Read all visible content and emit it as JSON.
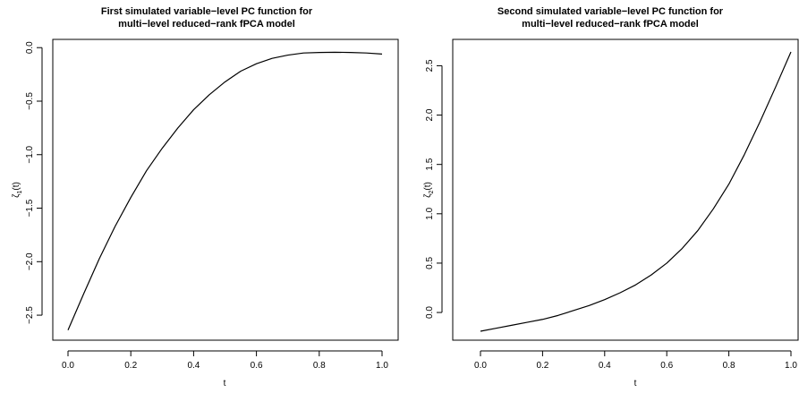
{
  "chart_data": [
    {
      "type": "line",
      "title_lines": [
        "First simulated variable−level PC function for",
        "multi−level reduced−rank fPCA model"
      ],
      "xlabel": "t",
      "ylabel_base": "ζ",
      "ylabel_sub": "1",
      "ylabel_arg": "(t)",
      "xlim": [
        0.0,
        1.0
      ],
      "ylim": [
        -2.65,
        -0.04
      ],
      "xticks": [
        "0.0",
        "0.2",
        "0.4",
        "0.6",
        "0.8",
        "1.0"
      ],
      "yticks": [
        "−2.5",
        "−2.0",
        "−1.5",
        "−1.0",
        "−0.5",
        "0.0"
      ],
      "grid": false,
      "legend": "none",
      "series": [
        {
          "color": "#000000",
          "x": [
            0.0,
            0.05,
            0.1,
            0.15,
            0.2,
            0.25,
            0.3,
            0.35,
            0.4,
            0.45,
            0.5,
            0.55,
            0.6,
            0.65,
            0.7,
            0.75,
            0.8,
            0.85,
            0.9,
            0.95,
            1.0
          ],
          "y": [
            -2.64,
            -2.3,
            -1.97,
            -1.67,
            -1.4,
            -1.15,
            -0.94,
            -0.75,
            -0.58,
            -0.44,
            -0.32,
            -0.22,
            -0.15,
            -0.1,
            -0.07,
            -0.05,
            -0.045,
            -0.043,
            -0.045,
            -0.05,
            -0.06
          ]
        }
      ]
    },
    {
      "type": "line",
      "title_lines": [
        "Second simulated variable−level PC function for",
        "multi−level reduced−rank fPCA model"
      ],
      "xlabel": "t",
      "ylabel_base": "ζ",
      "ylabel_sub": "2",
      "ylabel_arg": "(t)",
      "xlim": [
        0.0,
        1.0
      ],
      "ylim": [
        -0.19,
        2.64
      ],
      "xticks": [
        "0.0",
        "0.2",
        "0.4",
        "0.6",
        "0.8",
        "1.0"
      ],
      "yticks": [
        "0.0",
        "0.5",
        "1.0",
        "1.5",
        "2.0",
        "2.5"
      ],
      "grid": false,
      "legend": "none",
      "series": [
        {
          "color": "#000000",
          "x": [
            0.0,
            0.05,
            0.1,
            0.15,
            0.2,
            0.25,
            0.3,
            0.35,
            0.4,
            0.45,
            0.5,
            0.55,
            0.6,
            0.65,
            0.7,
            0.75,
            0.8,
            0.85,
            0.9,
            0.95,
            1.0
          ],
          "y": [
            -0.19,
            -0.16,
            -0.13,
            -0.1,
            -0.07,
            -0.03,
            0.02,
            0.07,
            0.13,
            0.2,
            0.28,
            0.38,
            0.5,
            0.65,
            0.83,
            1.05,
            1.3,
            1.6,
            1.93,
            2.28,
            2.64
          ]
        }
      ]
    }
  ]
}
